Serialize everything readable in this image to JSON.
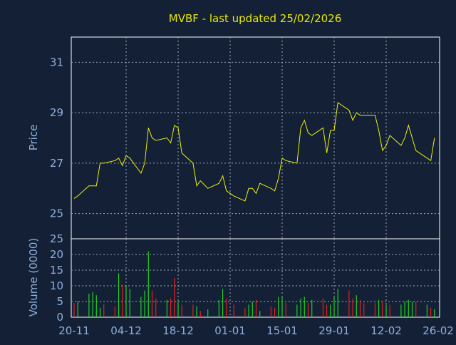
{
  "chart_data": [
    {
      "type": "line",
      "title": "MVBF - last updated 25/02/2026",
      "ylabel": "Price",
      "ylim": [
        24.0,
        32.0
      ],
      "yticks": [
        "25",
        "27",
        "29",
        "31"
      ],
      "grid": true,
      "colors": {
        "line": "#f0f000",
        "background": "#132036",
        "text": "#8fb0dc",
        "frame": "#ffffff"
      },
      "series": [
        {
          "x": [
            "2025-11-20",
            "2025-11-21",
            "2025-11-24",
            "2025-11-25",
            "2025-11-26",
            "2025-11-27",
            "2025-11-28",
            "2025-12-01",
            "2025-12-02",
            "2025-12-03",
            "2025-12-04",
            "2025-12-05",
            "2025-12-08",
            "2025-12-09",
            "2025-12-10",
            "2025-12-11",
            "2025-12-12",
            "2025-12-15",
            "2025-12-16",
            "2025-12-17",
            "2025-12-18",
            "2025-12-19",
            "2025-12-22",
            "2025-12-23",
            "2025-12-24",
            "2025-12-26",
            "2025-12-29",
            "2025-12-30",
            "2025-12-31",
            "2026-01-02",
            "2026-01-05",
            "2026-01-06",
            "2026-01-07",
            "2026-01-08",
            "2026-01-09",
            "2026-01-12",
            "2026-01-13",
            "2026-01-14",
            "2026-01-15",
            "2026-01-16",
            "2026-01-19",
            "2026-01-20",
            "2026-01-21",
            "2026-01-22",
            "2026-01-23",
            "2026-01-26",
            "2026-01-27",
            "2026-01-28",
            "2026-01-29",
            "2026-01-30",
            "2026-02-02",
            "2026-02-03",
            "2026-02-04",
            "2026-02-05",
            "2026-02-06",
            "2026-02-09",
            "2026-02-10",
            "2026-02-11",
            "2026-02-12",
            "2026-02-13",
            "2026-02-16",
            "2026-02-17",
            "2026-02-18",
            "2026-02-19",
            "2026-02-20",
            "2026-02-23",
            "2026-02-24",
            "2026-02-25"
          ],
          "values": [
            25.6,
            25.7,
            26.1,
            26.1,
            26.1,
            27.0,
            27.0,
            27.1,
            27.2,
            26.9,
            27.3,
            27.2,
            26.6,
            27.0,
            28.4,
            28.0,
            27.9,
            28.0,
            27.8,
            28.5,
            28.4,
            27.4,
            27.0,
            26.1,
            26.3,
            26.0,
            26.2,
            26.5,
            25.9,
            25.7,
            25.5,
            26.0,
            26.0,
            25.8,
            26.2,
            26.0,
            25.9,
            26.4,
            27.2,
            27.1,
            27.0,
            28.4,
            28.7,
            28.2,
            28.1,
            28.4,
            27.4,
            28.3,
            28.3,
            29.4,
            29.1,
            28.7,
            29.0,
            28.9,
            28.9,
            28.9,
            28.3,
            27.5,
            27.7,
            28.1,
            27.7,
            28.0,
            28.5,
            28.0,
            27.5,
            27.2,
            27.1,
            28.0
          ]
        }
      ]
    },
    {
      "type": "bar",
      "ylabel": "Volume (0000)",
      "ylim": [
        0,
        25
      ],
      "yticks": [
        "0",
        "5",
        "10",
        "15",
        "20",
        "25"
      ],
      "xticks": [
        "20-11",
        "04-12",
        "18-12",
        "01-01",
        "15-01",
        "29-01",
        "12-02",
        "26-02"
      ],
      "grid": true,
      "colors": {
        "up": "#20d020",
        "down": "#e02020"
      },
      "series": [
        {
          "values": [
            4.5,
            5.0,
            7.5,
            8.0,
            7.0,
            3.0,
            4.0,
            3.5,
            14.0,
            10.5,
            10.0,
            9.0,
            6.5,
            8.5,
            21.0,
            8.5,
            6.0,
            5.5,
            6.0,
            12.5,
            5.0,
            4.0,
            4.0,
            3.5,
            2.0,
            2.5,
            5.5,
            9.0,
            6.0,
            4.0,
            3.0,
            4.0,
            5.0,
            5.5,
            2.0,
            3.5,
            3.0,
            6.5,
            6.5,
            4.5,
            4.0,
            6.0,
            6.5,
            4.5,
            5.5,
            6.0,
            4.0,
            4.0,
            6.5,
            9.0,
            8.5,
            6.0,
            7.0,
            5.5,
            4.5,
            4.5,
            5.5,
            5.0,
            4.0,
            4.0,
            4.0,
            5.0,
            5.5,
            5.0,
            5.0,
            4.0,
            3.0,
            2.5
          ],
          "direction": [
            "down",
            "up",
            "up",
            "up",
            "up",
            "up",
            "down",
            "down",
            "up",
            "down",
            "up",
            "up",
            "up",
            "up",
            "up",
            "down",
            "down",
            "up",
            "down",
            "down",
            "up",
            "down",
            "down",
            "up",
            "down",
            "up",
            "up",
            "up",
            "down",
            "down",
            "down",
            "up",
            "up",
            "down",
            "up",
            "down",
            "down",
            "up",
            "up",
            "down",
            "up",
            "up",
            "up",
            "down",
            "up",
            "down",
            "down",
            "up",
            "up",
            "up",
            "down",
            "down",
            "up",
            "down",
            "down",
            "down",
            "up",
            "down",
            "up",
            "down",
            "up",
            "up",
            "up",
            "up",
            "down",
            "up",
            "down",
            "up"
          ]
        }
      ]
    }
  ]
}
